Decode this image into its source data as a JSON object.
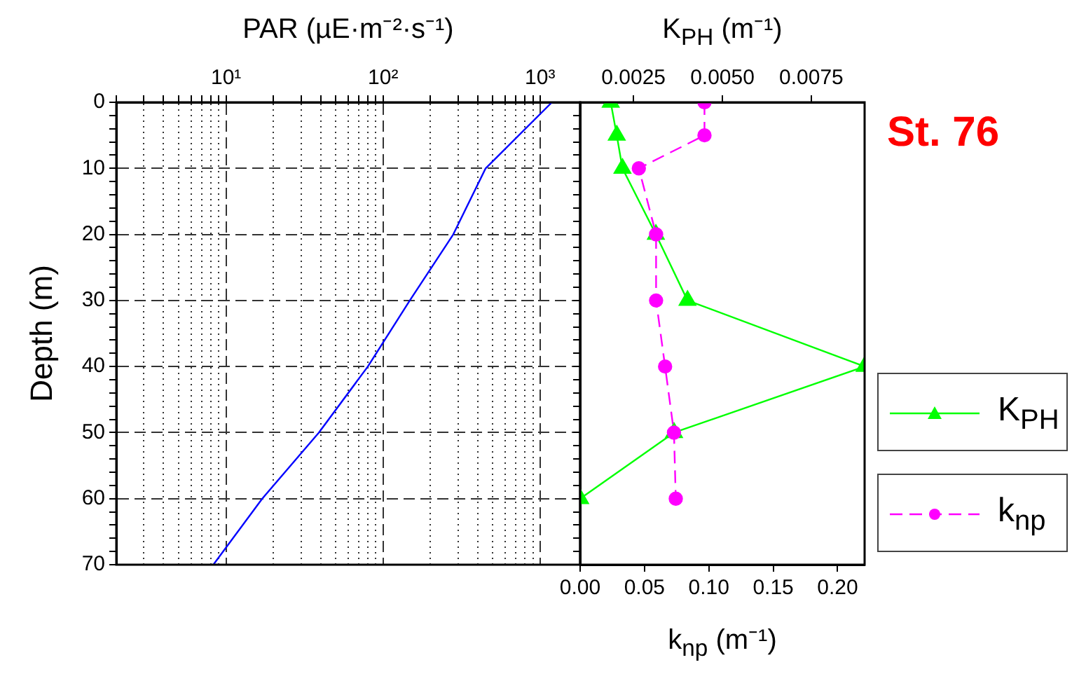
{
  "chart_data": [
    {
      "type": "line",
      "xlabel": "PAR  (µE·m⁻²·s⁻¹)",
      "ylabel": "Depth  (m)",
      "log": "x",
      "grid": true,
      "marker": "none",
      "line_style": "solid",
      "color": "#0000ff",
      "x": [
        1190,
        450,
        280,
        148,
        80,
        39,
        17,
        8.3
      ],
      "values": [
        0,
        10,
        20,
        30,
        40,
        50,
        60,
        70
      ],
      "xlim": [
        2,
        1800
      ],
      "xticks": [
        {
          "value": 2,
          "label": null
        },
        {
          "value": 3,
          "label": null
        },
        {
          "value": 4,
          "label": null
        },
        {
          "value": 5,
          "label": null
        },
        {
          "value": 6,
          "label": null
        },
        {
          "value": 7,
          "label": null
        },
        {
          "value": 8,
          "label": null
        },
        {
          "value": 9,
          "label": null
        },
        {
          "value": 10,
          "label": "10¹"
        },
        {
          "value": 20,
          "label": null
        },
        {
          "value": 30,
          "label": null
        },
        {
          "value": 40,
          "label": null
        },
        {
          "value": 50,
          "label": null
        },
        {
          "value": 60,
          "label": null
        },
        {
          "value": 70,
          "label": null
        },
        {
          "value": 80,
          "label": null
        },
        {
          "value": 90,
          "label": null
        },
        {
          "value": 100,
          "label": "10²"
        },
        {
          "value": 200,
          "label": null
        },
        {
          "value": 300,
          "label": null
        },
        {
          "value": 400,
          "label": null
        },
        {
          "value": 500,
          "label": null
        },
        {
          "value": 600,
          "label": null
        },
        {
          "value": 700,
          "label": null
        },
        {
          "value": 800,
          "label": null
        },
        {
          "value": 900,
          "label": null
        },
        {
          "value": 1000,
          "label": "10³"
        }
      ],
      "ylim": [
        70,
        0
      ],
      "yticks": [
        0,
        {
          "value": 2,
          "label": null
        },
        {
          "value": 4,
          "label": null
        },
        {
          "value": 6,
          "label": null
        },
        {
          "value": 8,
          "label": null
        },
        10,
        {
          "value": 12,
          "label": null
        },
        {
          "value": 14,
          "label": null
        },
        {
          "value": 16,
          "label": null
        },
        {
          "value": 18,
          "label": null
        },
        20,
        {
          "value": 22,
          "label": null
        },
        {
          "value": 24,
          "label": null
        },
        {
          "value": 26,
          "label": null
        },
        {
          "value": 28,
          "label": null
        },
        30,
        {
          "value": 32,
          "label": null
        },
        {
          "value": 34,
          "label": null
        },
        {
          "value": 36,
          "label": null
        },
        {
          "value": 38,
          "label": null
        },
        40,
        {
          "value": 42,
          "label": null
        },
        {
          "value": 44,
          "label": null
        },
        {
          "value": 46,
          "label": null
        },
        {
          "value": 48,
          "label": null
        },
        50,
        {
          "value": 52,
          "label": null
        },
        {
          "value": 54,
          "label": null
        },
        {
          "value": 56,
          "label": null
        },
        {
          "value": 58,
          "label": null
        },
        60,
        {
          "value": 62,
          "label": null
        },
        {
          "value": 64,
          "label": null
        },
        {
          "value": 66,
          "label": null
        },
        {
          "value": 68,
          "label": null
        },
        70
      ]
    },
    {
      "type": "line",
      "x2label": "K$_{PH}$  (m⁻¹)",
      "xlabel": "k$_{np}$  (m⁻¹)",
      "legend": "right",
      "tick_labels": "x",
      "annotations": [
        "St. 76"
      ],
      "series": [
        {
          "name": "K$_{PH}$",
          "color": "#00ff00",
          "axis": "x2",
          "marker": "triangle",
          "line_style": "solid",
          "x": [
            0.00186,
            0.00203,
            0.00219,
            0.00313,
            0.00402,
            0.009,
            0.00364,
            0.001
          ],
          "values": [
            0,
            5,
            10,
            20,
            30,
            40,
            50,
            60
          ]
        },
        {
          "name": "k$_{np}$",
          "color": "#ff00ff",
          "marker": "circle",
          "line_style": "dashed",
          "x": [
            0.0966,
            0.0966,
            0.0456,
            0.059,
            0.059,
            0.066,
            0.0729,
            0.0743
          ],
          "values": [
            0,
            5,
            10,
            20,
            30,
            40,
            50,
            60
          ]
        }
      ],
      "xlim": [
        0,
        0.221
      ],
      "xticks": [
        {
          "value": 0,
          "label": "0.00"
        },
        0.05,
        {
          "value": 0.1,
          "label": "0.10"
        },
        0.15,
        {
          "value": 0.2,
          "label": "0.20"
        }
      ],
      "x2lim": [
        0.001,
        0.009
      ],
      "x2ticks": [
        0.0025,
        {
          "value": 0.005,
          "label": "0.0050"
        },
        0.0075
      ],
      "ylim": [
        70,
        0
      ],
      "yticks": [
        0,
        {
          "value": 2,
          "label": null
        },
        {
          "value": 4,
          "label": null
        },
        {
          "value": 6,
          "label": null
        },
        {
          "value": 8,
          "label": null
        },
        10,
        {
          "value": 12,
          "label": null
        },
        {
          "value": 14,
          "label": null
        },
        {
          "value": 16,
          "label": null
        },
        {
          "value": 18,
          "label": null
        },
        20,
        {
          "value": 22,
          "label": null
        },
        {
          "value": 24,
          "label": null
        },
        {
          "value": 26,
          "label": null
        },
        {
          "value": 28,
          "label": null
        },
        30,
        {
          "value": 32,
          "label": null
        },
        {
          "value": 34,
          "label": null
        },
        {
          "value": 36,
          "label": null
        },
        {
          "value": 38,
          "label": null
        },
        40,
        {
          "value": 42,
          "label": null
        },
        {
          "value": 44,
          "label": null
        },
        {
          "value": 46,
          "label": null
        },
        {
          "value": 48,
          "label": null
        },
        50,
        {
          "value": 52,
          "label": null
        },
        {
          "value": 54,
          "label": null
        },
        {
          "value": 56,
          "label": null
        },
        {
          "value": 58,
          "label": null
        },
        60,
        {
          "value": 62,
          "label": null
        },
        {
          "value": 64,
          "label": null
        },
        {
          "value": 66,
          "label": null
        },
        {
          "value": 68,
          "label": null
        },
        70
      ]
    }
  ]
}
